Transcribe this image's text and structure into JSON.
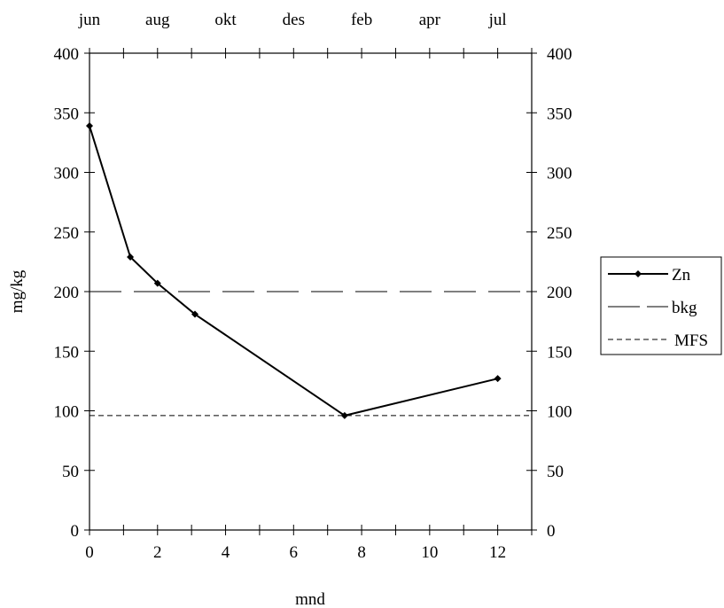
{
  "chart_data": {
    "type": "line",
    "xlabel": "mnd",
    "ylabel": "mg/kg",
    "xlim": [
      0,
      13
    ],
    "ylim": [
      0,
      400
    ],
    "x_ticks": [
      0,
      2,
      4,
      6,
      8,
      10,
      12
    ],
    "x_minor_step": 1,
    "y_ticks": [
      0,
      50,
      100,
      150,
      200,
      250,
      300,
      350,
      400
    ],
    "top_axis_labels": [
      "jun",
      "aug",
      "okt",
      "des",
      "feb",
      "apr",
      "jul"
    ],
    "right_axis_labels": [
      "0",
      "50",
      "100",
      "150",
      "200",
      "250",
      "300",
      "350",
      "400"
    ],
    "grid": false,
    "legend_position": "right",
    "series": [
      {
        "name": "Zn",
        "style": "solid-with-diamond-markers",
        "color": "#000000",
        "x": [
          0,
          1.2,
          2.0,
          3.1,
          7.5,
          12.0
        ],
        "y": [
          339,
          229,
          207,
          181,
          96,
          127
        ]
      },
      {
        "name": "bkg",
        "style": "long-dash",
        "color": "#000000",
        "value": 200
      },
      {
        "name": "MFS",
        "style": "short-dash",
        "color": "#000000",
        "value": 96
      }
    ]
  }
}
